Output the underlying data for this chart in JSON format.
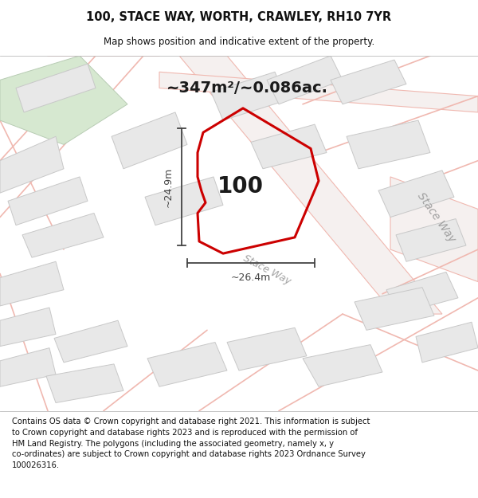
{
  "title": "100, STACE WAY, WORTH, CRAWLEY, RH10 7YR",
  "subtitle": "Map shows position and indicative extent of the property.",
  "area_text": "~347m²/~0.086ac.",
  "dim_width": "~26.4m",
  "dim_height": "~24.9m",
  "number_label": "100",
  "road_label1": "Stace Way",
  "road_label2": "Stace Way",
  "footer": "Contains OS data © Crown copyright and database right 2021. This information is subject\nto Crown copyright and database rights 2023 and is reproduced with the permission of\nHM Land Registry. The polygons (including the associated geometry, namely x, y\nco-ordinates) are subject to Crown copyright and database rights 2023 Ordnance Survey\n100026316.",
  "map_bg": "#f9f8f7",
  "building_fill": "#e8e8e8",
  "building_edge": "#c8c8c8",
  "green_fill": "#d6e8d0",
  "green_edge": "#b8ccb4",
  "road_line_color": "#f0b8b0",
  "road_fill": "#f5f0ef",
  "highlight_color": "#cc0000",
  "dim_color": "#444444",
  "text_color": "#000000",
  "road_text_color": "#aaaaaa",
  "footer_color": "#111111",
  "title_fontsize": 10.5,
  "subtitle_fontsize": 8.5,
  "area_fontsize": 14,
  "number_fontsize": 20,
  "dim_fontsize": 9,
  "road_fontsize": 9,
  "footer_fontsize": 7.2
}
